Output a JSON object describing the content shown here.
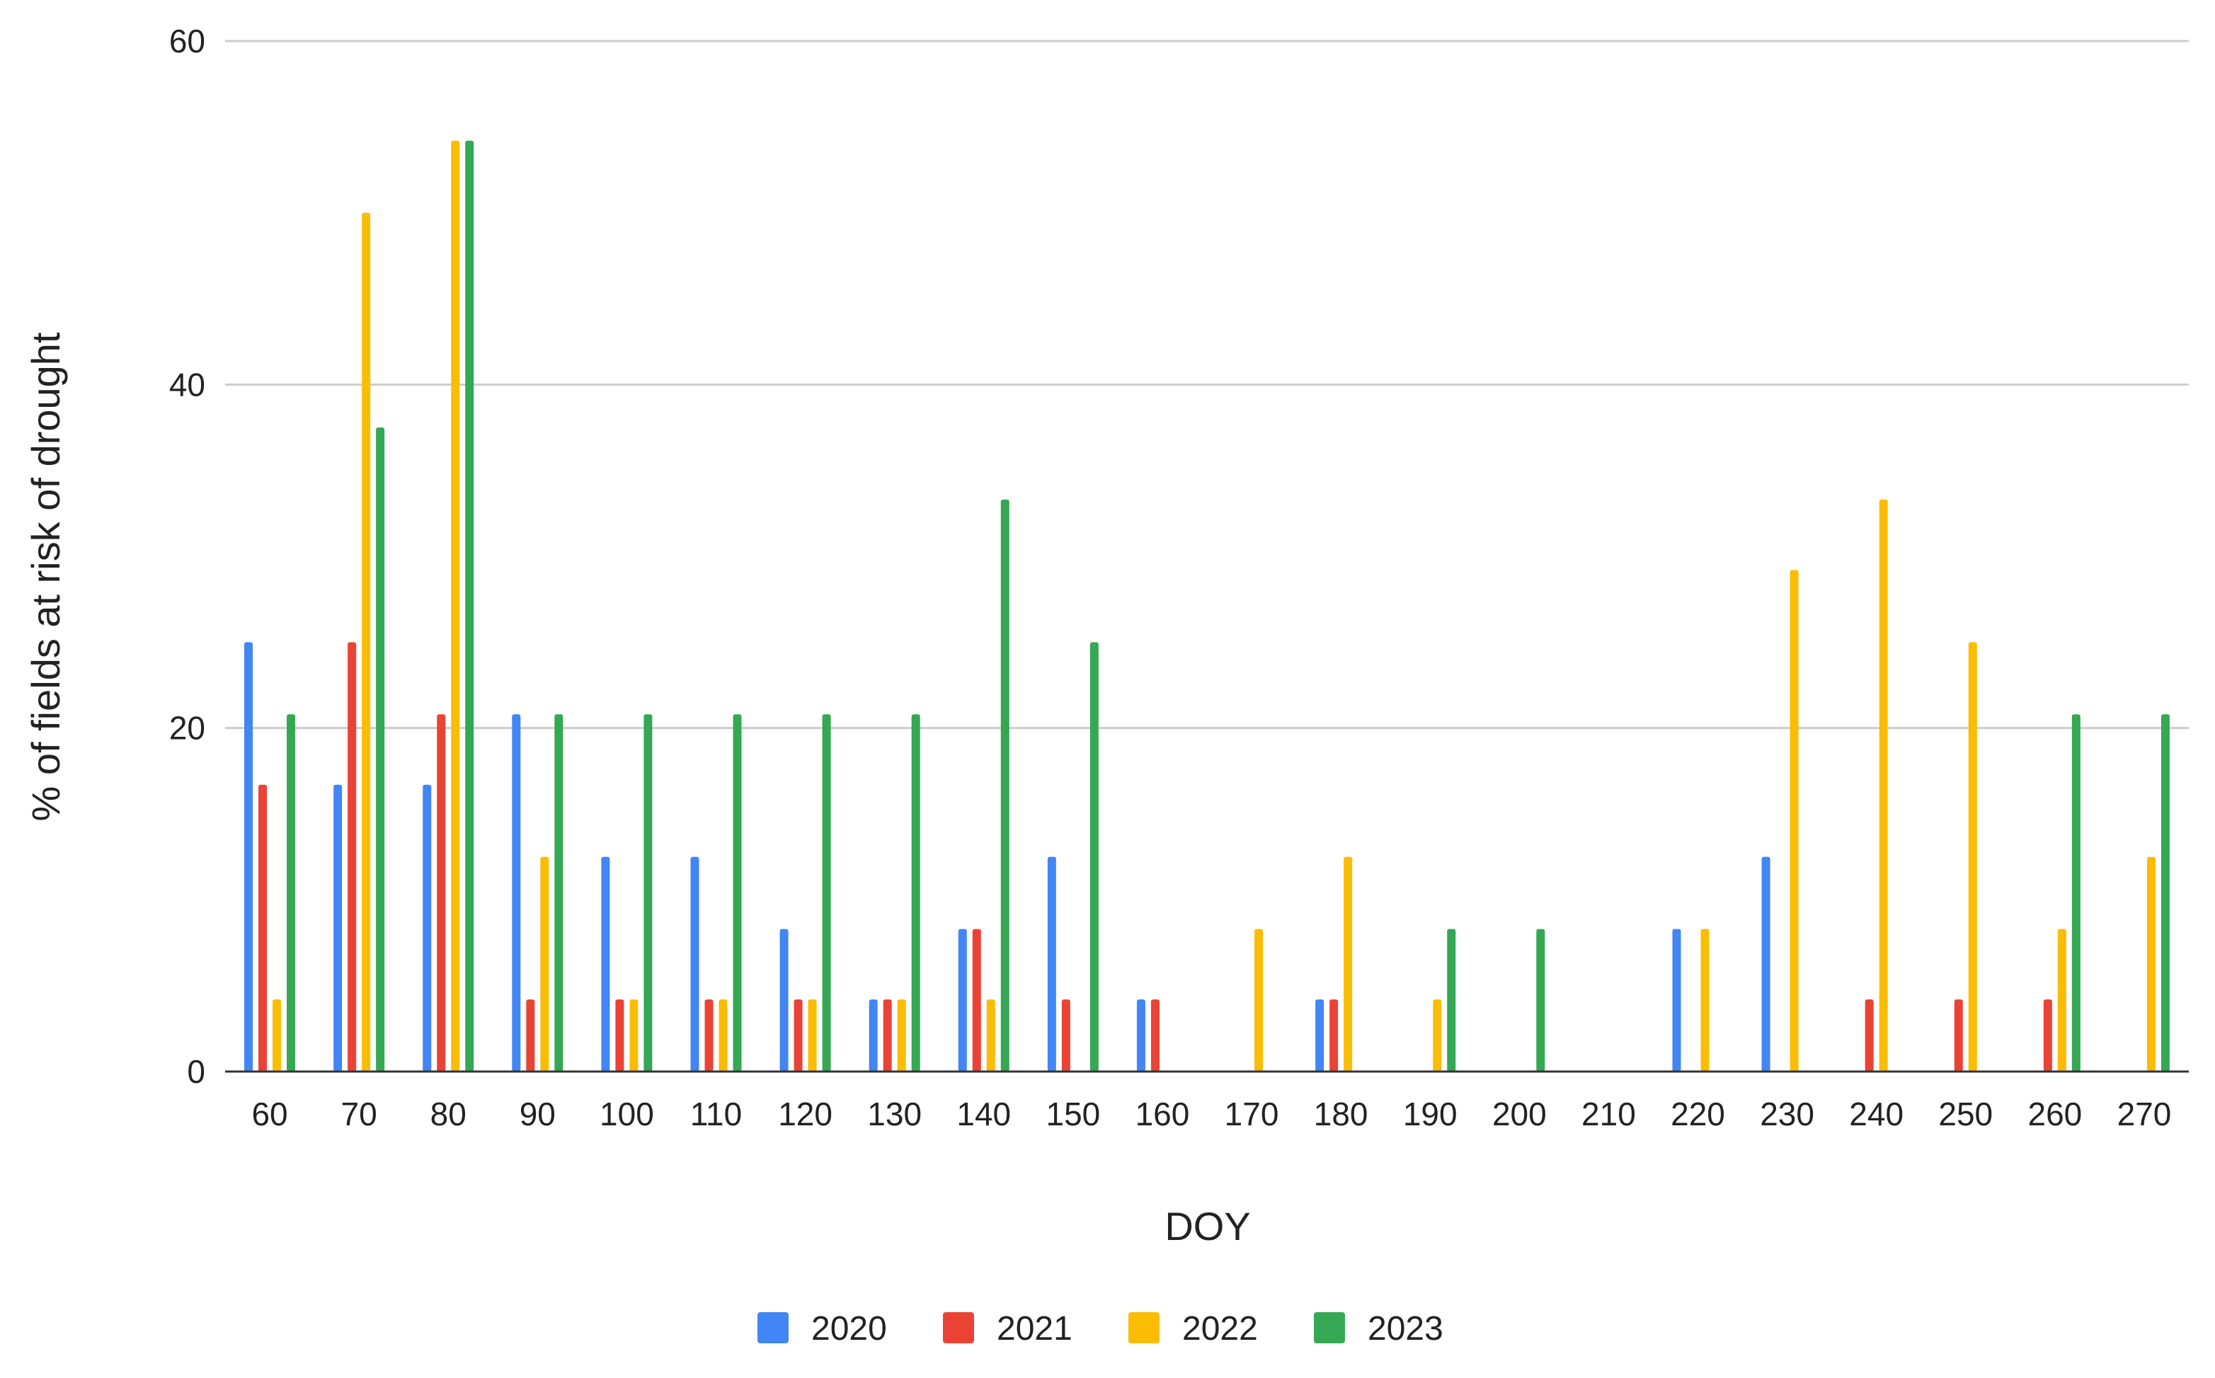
{
  "chart_data": {
    "type": "bar",
    "title": "",
    "xlabel": "DOY",
    "ylabel": "% of fields at risk of drought",
    "ylim": [
      0,
      60
    ],
    "yticks": [
      0,
      20,
      40,
      60
    ],
    "grid": true,
    "legend_position": "bottom",
    "categories": [
      "60",
      "70",
      "80",
      "90",
      "100",
      "110",
      "120",
      "130",
      "140",
      "150",
      "160",
      "170",
      "180",
      "190",
      "200",
      "210",
      "220",
      "230",
      "240",
      "250",
      "260",
      "270"
    ],
    "series": [
      {
        "name": "2020",
        "color": "#4285F4",
        "values": [
          25,
          16.7,
          16.7,
          20.8,
          12.5,
          12.5,
          8.3,
          4.2,
          8.3,
          12.5,
          4.2,
          0,
          4.2,
          0,
          0,
          0,
          8.3,
          12.5,
          0,
          0,
          0,
          0
        ]
      },
      {
        "name": "2021",
        "color": "#EA4335",
        "values": [
          16.7,
          25,
          20.8,
          4.2,
          4.2,
          4.2,
          4.2,
          4.2,
          8.3,
          4.2,
          4.2,
          0,
          4.2,
          0,
          0,
          0,
          0,
          0,
          4.2,
          4.2,
          4.2,
          0
        ]
      },
      {
        "name": "2022",
        "color": "#FBBC04",
        "values": [
          4.2,
          50,
          54.2,
          12.5,
          4.2,
          4.2,
          4.2,
          4.2,
          4.2,
          0,
          0,
          8.3,
          12.5,
          4.2,
          0,
          0,
          8.3,
          29.2,
          33.3,
          25,
          8.3,
          12.5
        ]
      },
      {
        "name": "2023",
        "color": "#34A853",
        "values": [
          20.8,
          37.5,
          54.2,
          20.8,
          20.8,
          20.8,
          20.8,
          20.8,
          33.3,
          25,
          0,
          0,
          0,
          8.3,
          8.3,
          0,
          0,
          0,
          0,
          0,
          20.8,
          20.8
        ]
      }
    ],
    "gridline_color": "#cccccc",
    "axis_color": "#333333"
  }
}
